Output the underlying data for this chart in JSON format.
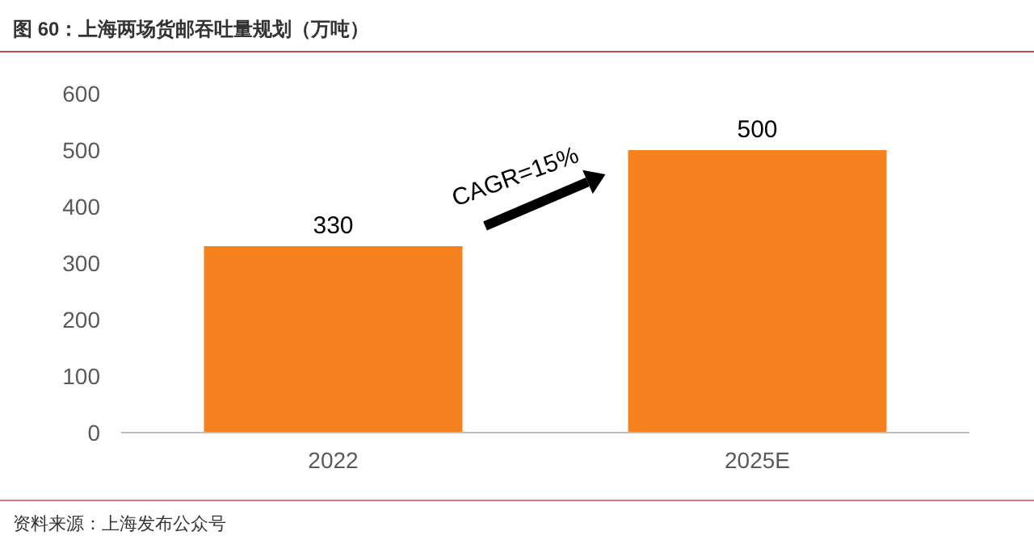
{
  "chart_data": {
    "type": "bar",
    "title": "图 60：上海两场货邮吞吐量规划（万吨）",
    "categories": [
      "2022",
      "2025E"
    ],
    "values": [
      330,
      500
    ],
    "color": "#f5821f",
    "ylim": [
      0,
      600
    ],
    "yticks": [
      0,
      100,
      200,
      300,
      400,
      500,
      600
    ],
    "data_labels": true,
    "grid": false,
    "annotations": [
      "CAGR=15%",
      "资料来源：上海发布公众号"
    ]
  }
}
